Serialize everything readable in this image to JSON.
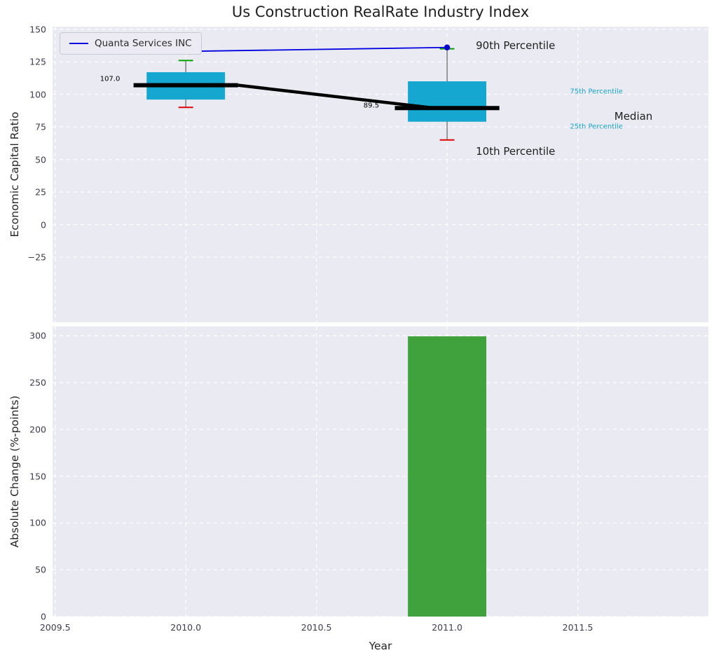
{
  "colors": {
    "figure_bg": "#ffffff",
    "axes_bg": "#eaeaf2",
    "grid": "#ffffff",
    "tick_text": "#3d3d4f",
    "title_text": "#1f1f1f",
    "box_fill": "#16a7d0",
    "median_line": "#000000",
    "company_line": "#0000e0",
    "company_dot": "#0000cd",
    "whisker": "#6e6e6e",
    "cap_high": "#00a000",
    "cap_low": "#dd0000",
    "bar_fill": "#3fa23c",
    "percentile_text": "#18a5c6",
    "legend_bg": "#ecebf3",
    "legend_border": "#c9c9d4"
  },
  "chart_data": [
    {
      "type": "boxplot",
      "name": "economic-capital-ratio-panel",
      "title": "Us Construction RealRate Industry Index",
      "ylabel": "Economic Capital Ratio",
      "xlim": [
        2009.49,
        2012.0
      ],
      "ylim": [
        -75,
        152
      ],
      "yticks": [
        150,
        125,
        100,
        75,
        50,
        25,
        0,
        -25
      ],
      "ytick_labels": [
        "150",
        "125",
        "100",
        "75",
        "50",
        "25",
        "0",
        "−25"
      ],
      "xticks": [
        2009.5,
        2010.0,
        2010.5,
        2011.0,
        2011.5
      ],
      "grid": "dashed-white",
      "legend": {
        "label": "Quanta Services INC",
        "position": "upper-left"
      },
      "company_series": {
        "name": "Quanta Services INC",
        "x": [
          2010,
          2011
        ],
        "y": [
          133,
          136
        ]
      },
      "boxes": [
        {
          "year": 2010,
          "p10": 90,
          "p25": 96,
          "median": 107.0,
          "p75": 117,
          "p90": 126
        },
        {
          "year": 2011,
          "p10": 65,
          "p25": 79,
          "median": 89.5,
          "p75": 110,
          "p90": 135
        }
      ],
      "box_width": 0.3,
      "median_bar_halfwidth": 0.2,
      "annotations": [
        {
          "text": "107.0",
          "x": 2009.71,
          "y": 111.5,
          "anchor": "middle",
          "size": 10,
          "color_key": "median_line"
        },
        {
          "text": "89.5",
          "x": 2010.71,
          "y": 91,
          "anchor": "middle",
          "size": 10,
          "color_key": "median_line"
        },
        {
          "text": "90th Percentile",
          "x": 2011.11,
          "y": 137.5,
          "anchor": "start",
          "size": 15,
          "color_key": "title_text"
        },
        {
          "text": "75th Percentile",
          "x": 2011.47,
          "y": 102,
          "anchor": "start",
          "size": 10,
          "color_key": "percentile_text"
        },
        {
          "text": "Median",
          "x": 2011.64,
          "y": 83,
          "anchor": "start",
          "size": 15,
          "color_key": "title_text"
        },
        {
          "text": "25th Percentile",
          "x": 2011.47,
          "y": 75,
          "anchor": "start",
          "size": 10,
          "color_key": "percentile_text"
        },
        {
          "text": "10th Percentile",
          "x": 2011.11,
          "y": 56,
          "anchor": "start",
          "size": 15,
          "color_key": "title_text"
        }
      ]
    },
    {
      "type": "bar",
      "name": "absolute-change-panel",
      "ylabel": "Absolute Change (%-points)",
      "xlabel": "Year",
      "xlim": [
        2009.49,
        2012.0
      ],
      "ylim": [
        0,
        310
      ],
      "yticks": [
        300,
        250,
        200,
        150,
        100,
        50,
        0
      ],
      "ytick_labels": [
        "300",
        "250",
        "200",
        "150",
        "100",
        "50",
        "0"
      ],
      "xticks": [
        2009.5,
        2010.0,
        2010.5,
        2011.0,
        2011.5
      ],
      "xtick_labels": [
        "2009.5",
        "2010.0",
        "2010.5",
        "2011.0",
        "2011.5"
      ],
      "grid": "dashed-white",
      "bars": [
        {
          "x": 2011,
          "value": 299.5,
          "width": 0.3
        }
      ]
    }
  ]
}
